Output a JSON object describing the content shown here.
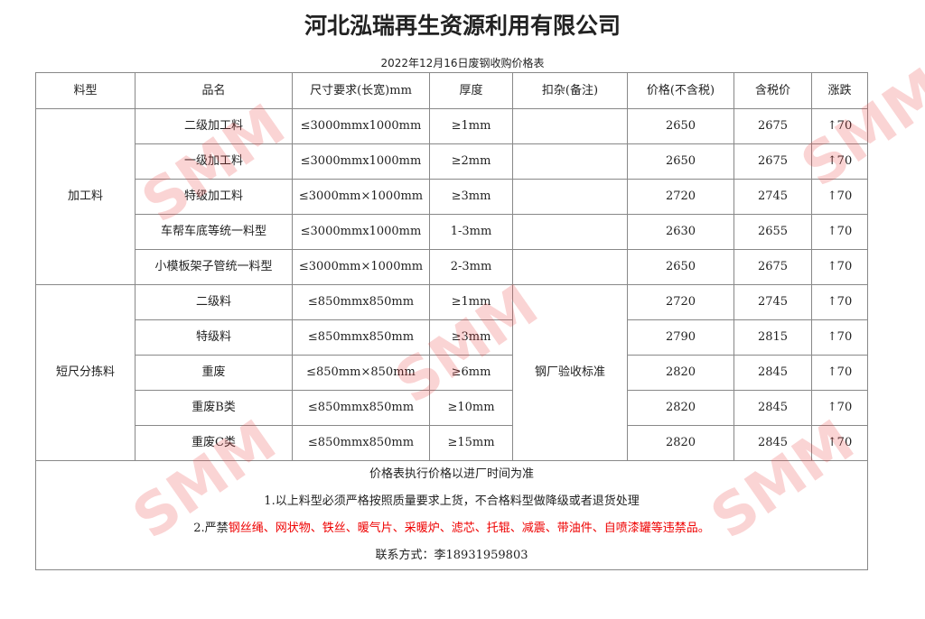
{
  "title": "河北泓瑞再生资源利用有限公司",
  "subtitle": "2022年12月16日废钢收购价格表",
  "headers": [
    "料型",
    "品名",
    "尺寸要求(长宽)mm",
    "厚度",
    "扣杂(备注)",
    "价格(不含税)",
    "含税价",
    "涨跌"
  ],
  "groups": [
    {
      "type": "加工料",
      "rows": [
        {
          "name": "二级加工料",
          "size": "≤3000mmx1000mm",
          "thick": "≥1mm",
          "price": "2650",
          "tax": "2675",
          "change": "70"
        },
        {
          "name": "一级加工料",
          "size": "≤3000mmx1000mm",
          "thick": "≥2mm",
          "price": "2650",
          "tax": "2675",
          "change": "70"
        },
        {
          "name": "特级加工料",
          "size": "≤3000mm×1000mm",
          "thick": "≥3mm",
          "price": "2720",
          "tax": "2745",
          "change": "70"
        },
        {
          "name": "车帮车底等统一料型",
          "size": "≤3000mmx1000mm",
          "thick": "1-3mm",
          "price": "2630",
          "tax": "2655",
          "change": "70"
        },
        {
          "name": "小模板架子管统一料型",
          "size": "≤3000mm×1000mm",
          "thick": "2-3mm",
          "price": "2650",
          "tax": "2675",
          "change": "70"
        }
      ]
    },
    {
      "type": "短尺分拣料",
      "note": "钢厂验收标准",
      "rows": [
        {
          "name": "二级料",
          "size": "≤850mmx850mm",
          "thick": "≥1mm",
          "price": "2720",
          "tax": "2745",
          "change": "70"
        },
        {
          "name": "特级料",
          "size": "≤850mmx850mm",
          "thick": "≥3mm",
          "price": "2790",
          "tax": "2815",
          "change": "70"
        },
        {
          "name": "重废",
          "size": "≤850mm×850mm",
          "thick": "≥6mm",
          "price": "2820",
          "tax": "2845",
          "change": "70"
        },
        {
          "name": "重废B类",
          "size": "≤850mmx850mm",
          "thick": "≥10mm",
          "price": "2820",
          "tax": "2845",
          "change": "70"
        },
        {
          "name": "重废C类",
          "size": "≤850mmx850mm",
          "thick": "≥15mm",
          "price": "2820",
          "tax": "2845",
          "change": "70"
        }
      ]
    }
  ],
  "up_icon": "arrow-up-icon",
  "footer": {
    "line1": "价格表执行价格以进厂时间为准",
    "line2": "1.以上料型必须严格按照质量要求上货，不合格料型做降级或者退货处理",
    "line3_prefix": "2.严禁",
    "line3_red": "钢丝绳、网状物、铁丝、暖气片、采暖炉、滤芯、托辊、减震、带油件、自喷漆罐等违禁品。",
    "contact": "联系方式：李18931959803"
  },
  "watermark": "SMM",
  "colors": {
    "warning": "#ee0000"
  }
}
